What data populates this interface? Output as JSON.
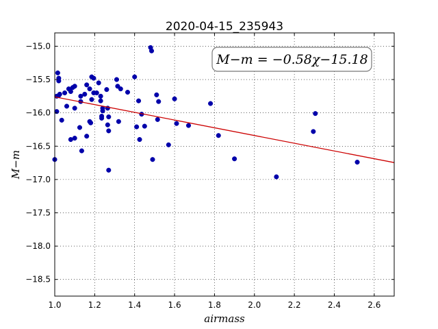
{
  "chart_data": {
    "type": "scatter",
    "title": "2020-04-15_235943",
    "xlabel": "airmass",
    "ylabel": "M−m",
    "xlim": [
      1.0,
      2.7
    ],
    "ylim": [
      -18.75,
      -14.8
    ],
    "xticks": [
      1.0,
      1.2,
      1.4,
      1.6,
      1.8,
      2.0,
      2.2,
      2.4,
      2.6
    ],
    "xtick_labels": [
      "1.0",
      "1.2",
      "1.4",
      "1.6",
      "1.8",
      "2.0",
      "2.2",
      "2.4",
      "2.6"
    ],
    "yticks": [
      -15.0,
      -15.5,
      -16.0,
      -16.5,
      -17.0,
      -17.5,
      -18.0,
      -18.5
    ],
    "ytick_labels": [
      "−15.0",
      "−15.5",
      "−16.0",
      "−16.5",
      "−17.0",
      "−17.5",
      "−18.0",
      "−18.5"
    ],
    "grid": true,
    "annotation": "M−m = −0.58χ−15.18",
    "fit_line": {
      "slope": -0.58,
      "intercept": -15.18,
      "color": "#cc0000"
    },
    "marker_color": "#0000aa",
    "points": [
      [
        1.0,
        -16.7
      ],
      [
        1.01,
        -15.98
      ],
      [
        1.01,
        -15.75
      ],
      [
        1.015,
        -15.4
      ],
      [
        1.02,
        -15.48
      ],
      [
        1.02,
        -15.52
      ],
      [
        1.02,
        -15.74
      ],
      [
        1.025,
        -15.72
      ],
      [
        1.035,
        -16.11
      ],
      [
        1.05,
        -15.7
      ],
      [
        1.06,
        -15.9
      ],
      [
        1.07,
        -15.64
      ],
      [
        1.08,
        -15.68
      ],
      [
        1.08,
        -16.4
      ],
      [
        1.09,
        -15.62
      ],
      [
        1.1,
        -15.93
      ],
      [
        1.1,
        -16.38
      ],
      [
        1.1,
        -15.6
      ],
      [
        1.125,
        -16.22
      ],
      [
        1.13,
        -15.75
      ],
      [
        1.13,
        -15.83
      ],
      [
        1.135,
        -16.57
      ],
      [
        1.15,
        -15.72
      ],
      [
        1.16,
        -15.58
      ],
      [
        1.16,
        -16.35
      ],
      [
        1.175,
        -15.64
      ],
      [
        1.175,
        -16.13
      ],
      [
        1.18,
        -16.15
      ],
      [
        1.185,
        -15.46
      ],
      [
        1.185,
        -15.8
      ],
      [
        1.195,
        -15.7
      ],
      [
        1.195,
        -15.48
      ],
      [
        1.21,
        -15.7
      ],
      [
        1.22,
        -15.55
      ],
      [
        1.23,
        -15.75
      ],
      [
        1.23,
        -15.82
      ],
      [
        1.235,
        -16.05
      ],
      [
        1.235,
        -16.08
      ],
      [
        1.24,
        -15.97
      ],
      [
        1.24,
        -15.93
      ],
      [
        1.26,
        -15.65
      ],
      [
        1.265,
        -15.93
      ],
      [
        1.265,
        -16.18
      ],
      [
        1.27,
        -16.27
      ],
      [
        1.27,
        -16.06
      ],
      [
        1.27,
        -16.86
      ],
      [
        1.31,
        -15.5
      ],
      [
        1.315,
        -15.6
      ],
      [
        1.32,
        -16.13
      ],
      [
        1.33,
        -15.64
      ],
      [
        1.365,
        -15.69
      ],
      [
        1.4,
        -15.46
      ],
      [
        1.41,
        -16.21
      ],
      [
        1.42,
        -15.82
      ],
      [
        1.425,
        -16.4
      ],
      [
        1.435,
        -16.02
      ],
      [
        1.45,
        -16.2
      ],
      [
        1.48,
        -15.02
      ],
      [
        1.485,
        -15.07
      ],
      [
        1.49,
        -16.7
      ],
      [
        1.51,
        -15.73
      ],
      [
        1.515,
        -16.1
      ],
      [
        1.52,
        -15.83
      ],
      [
        1.57,
        -16.48
      ],
      [
        1.6,
        -15.79
      ],
      [
        1.61,
        -16.16
      ],
      [
        1.67,
        -16.19
      ],
      [
        1.78,
        -15.86
      ],
      [
        1.82,
        -16.34
      ],
      [
        1.9,
        -16.69
      ],
      [
        2.11,
        -16.96
      ],
      [
        2.295,
        -16.28
      ],
      [
        2.305,
        -16.01
      ],
      [
        2.515,
        -16.74
      ]
    ]
  }
}
